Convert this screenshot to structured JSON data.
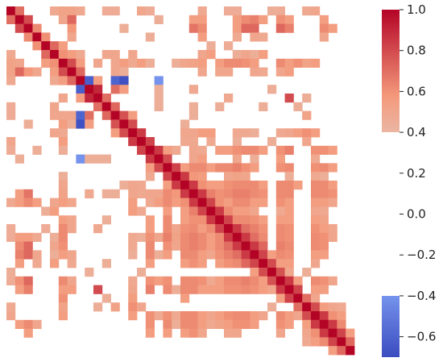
{
  "chart_data": {
    "type": "heatmap",
    "title": "",
    "xlabel": "",
    "ylabel": "",
    "x_tick_labels": [],
    "y_tick_labels": [],
    "color_scale": "coolwarm",
    "vmin": -0.7,
    "vmax": 1.0,
    "colorbar": {
      "placement": "right",
      "ticks": [
        1.0,
        0.8,
        0.6,
        0.4,
        0.2,
        0.0,
        -0.2,
        -0.4,
        -0.6
      ],
      "tick_labels": [
        "1.0",
        "0.8",
        "0.6",
        "0.4",
        "0.2",
        "0.0",
        "−0.2",
        "−0.4",
        "−0.6"
      ]
    },
    "mask_threshold": 0.4,
    "mask_note_values_between": [
      -0.4,
      0.4
    ],
    "matrix_size": 40,
    "diagonal_value": 1.0,
    "cells": [
      [
        0,
        1,
        0.7
      ],
      [
        0,
        5,
        0.48
      ],
      [
        0,
        6,
        0.52
      ],
      [
        0,
        7,
        0.52
      ],
      [
        0,
        8,
        0.48
      ],
      [
        0,
        11,
        0.46
      ],
      [
        0,
        12,
        0.46
      ],
      [
        0,
        15,
        0.5
      ],
      [
        0,
        16,
        0.46
      ],
      [
        0,
        22,
        0.48
      ],
      [
        0,
        25,
        0.46
      ],
      [
        0,
        26,
        0.46
      ],
      [
        0,
        30,
        0.45
      ],
      [
        0,
        31,
        0.46
      ],
      [
        0,
        34,
        0.48
      ],
      [
        0,
        35,
        0.5
      ],
      [
        1,
        2,
        0.8
      ],
      [
        1,
        6,
        0.5
      ],
      [
        1,
        7,
        0.72
      ],
      [
        1,
        17,
        0.45
      ],
      [
        1,
        21,
        0.55
      ],
      [
        1,
        22,
        0.55
      ],
      [
        1,
        26,
        0.55
      ],
      [
        1,
        27,
        0.62
      ],
      [
        1,
        28,
        0.65
      ],
      [
        1,
        29,
        0.55
      ],
      [
        1,
        31,
        0.6
      ],
      [
        1,
        32,
        0.55
      ],
      [
        1,
        36,
        0.55
      ],
      [
        2,
        3,
        0.62
      ],
      [
        2,
        7,
        0.58
      ],
      [
        2,
        13,
        0.45
      ],
      [
        2,
        21,
        0.68
      ],
      [
        2,
        22,
        0.62
      ],
      [
        2,
        26,
        0.55
      ],
      [
        2,
        27,
        0.72
      ],
      [
        2,
        28,
        0.72
      ],
      [
        2,
        31,
        0.72
      ],
      [
        2,
        32,
        0.65
      ],
      [
        2,
        36,
        0.62
      ],
      [
        2,
        37,
        0.55
      ],
      [
        3,
        4,
        0.6
      ],
      [
        3,
        7,
        0.5
      ],
      [
        3,
        16,
        0.45
      ],
      [
        3,
        22,
        0.55
      ],
      [
        3,
        26,
        0.48
      ],
      [
        3,
        28,
        0.5
      ],
      [
        3,
        29,
        0.48
      ],
      [
        3,
        36,
        0.5
      ],
      [
        4,
        5,
        0.72
      ],
      [
        4,
        6,
        0.55
      ],
      [
        4,
        23,
        0.45
      ],
      [
        4,
        25,
        0.46
      ],
      [
        5,
        6,
        0.6
      ],
      [
        5,
        7,
        0.55
      ],
      [
        5,
        8,
        0.48
      ],
      [
        5,
        11,
        0.5
      ],
      [
        5,
        12,
        0.5
      ],
      [
        5,
        14,
        0.5
      ],
      [
        5,
        22,
        0.5
      ],
      [
        5,
        23,
        0.55
      ],
      [
        5,
        26,
        0.45
      ],
      [
        5,
        27,
        0.5
      ],
      [
        5,
        28,
        0.45
      ],
      [
        5,
        29,
        0.55
      ],
      [
        6,
        7,
        0.8
      ],
      [
        6,
        8,
        0.55
      ],
      [
        6,
        10,
        0.5
      ],
      [
        6,
        12,
        0.5
      ],
      [
        6,
        13,
        0.55
      ],
      [
        6,
        14,
        0.48
      ],
      [
        6,
        15,
        0.55
      ],
      [
        6,
        16,
        0.45
      ],
      [
        6,
        19,
        0.45
      ],
      [
        6,
        20,
        0.5
      ],
      [
        6,
        21,
        0.52
      ],
      [
        6,
        22,
        0.55
      ],
      [
        6,
        24,
        0.55
      ],
      [
        6,
        25,
        0.62
      ],
      [
        6,
        26,
        0.62
      ],
      [
        6,
        27,
        0.6
      ],
      [
        6,
        28,
        0.55
      ],
      [
        6,
        31,
        0.62
      ],
      [
        6,
        32,
        0.55
      ],
      [
        6,
        33,
        0.6
      ],
      [
        6,
        34,
        0.52
      ],
      [
        6,
        35,
        0.55
      ],
      [
        7,
        8,
        0.72
      ],
      [
        7,
        12,
        0.5
      ],
      [
        7,
        13,
        0.45
      ],
      [
        7,
        22,
        0.5
      ],
      [
        7,
        24,
        0.5
      ],
      [
        7,
        25,
        0.5
      ],
      [
        7,
        28,
        0.5
      ],
      [
        7,
        29,
        0.48
      ],
      [
        7,
        31,
        0.5
      ],
      [
        7,
        32,
        0.55
      ],
      [
        8,
        9,
        -0.62
      ],
      [
        8,
        10,
        0.55
      ],
      [
        8,
        12,
        -0.6
      ],
      [
        8,
        13,
        -0.68
      ],
      [
        8,
        17,
        -0.4
      ],
      [
        9,
        10,
        0.9
      ],
      [
        9,
        12,
        0.7
      ],
      [
        9,
        13,
        0.55
      ],
      [
        9,
        17,
        0.45
      ],
      [
        9,
        21,
        0.48
      ],
      [
        9,
        30,
        0.45
      ],
      [
        10,
        11,
        0.7
      ],
      [
        10,
        17,
        0.45
      ],
      [
        10,
        25,
        0.48
      ],
      [
        10,
        32,
        0.8
      ],
      [
        10,
        34,
        0.45
      ],
      [
        11,
        12,
        0.72
      ],
      [
        11,
        17,
        0.45
      ],
      [
        11,
        21,
        0.45
      ],
      [
        11,
        24,
        0.45
      ],
      [
        11,
        29,
        0.45
      ],
      [
        11,
        33,
        0.45
      ],
      [
        12,
        13,
        0.78
      ],
      [
        12,
        14,
        0.55
      ],
      [
        12,
        21,
        0.45
      ],
      [
        12,
        34,
        0.52
      ],
      [
        13,
        14,
        0.8
      ],
      [
        13,
        20,
        0.45
      ],
      [
        14,
        15,
        0.85
      ],
      [
        14,
        20,
        0.5
      ],
      [
        14,
        21,
        0.5
      ],
      [
        14,
        22,
        0.55
      ],
      [
        14,
        23,
        0.55
      ],
      [
        14,
        26,
        0.48
      ],
      [
        14,
        27,
        0.48
      ],
      [
        14,
        28,
        0.45
      ],
      [
        14,
        31,
        0.48
      ],
      [
        14,
        32,
        0.5
      ],
      [
        14,
        33,
        0.55
      ],
      [
        14,
        34,
        0.6
      ],
      [
        14,
        35,
        0.55
      ],
      [
        15,
        16,
        0.82
      ],
      [
        15,
        20,
        0.48
      ],
      [
        15,
        21,
        0.48
      ],
      [
        15,
        23,
        0.48
      ],
      [
        15,
        26,
        0.45
      ],
      [
        15,
        30,
        0.45
      ],
      [
        15,
        34,
        0.5
      ],
      [
        16,
        17,
        0.85
      ],
      [
        16,
        18,
        0.55
      ],
      [
        16,
        19,
        0.48
      ],
      [
        16,
        21,
        0.5
      ],
      [
        16,
        22,
        0.48
      ],
      [
        16,
        24,
        0.55
      ],
      [
        16,
        25,
        0.55
      ],
      [
        16,
        26,
        0.6
      ],
      [
        16,
        27,
        0.62
      ],
      [
        16,
        28,
        0.62
      ],
      [
        16,
        29,
        0.55
      ],
      [
        16,
        31,
        0.6
      ],
      [
        16,
        32,
        0.65
      ],
      [
        16,
        35,
        0.6
      ],
      [
        16,
        36,
        0.6
      ],
      [
        16,
        37,
        0.55
      ],
      [
        17,
        18,
        0.8
      ],
      [
        17,
        21,
        0.5
      ],
      [
        17,
        22,
        0.55
      ],
      [
        17,
        26,
        0.5
      ],
      [
        17,
        28,
        0.45
      ],
      [
        17,
        31,
        0.55
      ],
      [
        17,
        35,
        0.48
      ],
      [
        18,
        19,
        0.82
      ],
      [
        18,
        20,
        0.55
      ],
      [
        18,
        21,
        0.62
      ],
      [
        18,
        22,
        0.62
      ],
      [
        18,
        23,
        0.55
      ],
      [
        18,
        24,
        0.62
      ],
      [
        18,
        25,
        0.62
      ],
      [
        18,
        26,
        0.65
      ],
      [
        18,
        27,
        0.6
      ],
      [
        18,
        28,
        0.55
      ],
      [
        18,
        31,
        0.6
      ],
      [
        18,
        32,
        0.62
      ],
      [
        18,
        35,
        0.6
      ],
      [
        18,
        36,
        0.62
      ],
      [
        18,
        37,
        0.55
      ],
      [
        19,
        20,
        0.85
      ],
      [
        19,
        21,
        0.58
      ],
      [
        19,
        22,
        0.55
      ],
      [
        19,
        25,
        0.5
      ],
      [
        19,
        26,
        0.52
      ],
      [
        19,
        27,
        0.5
      ],
      [
        19,
        32,
        0.45
      ],
      [
        19,
        35,
        0.48
      ],
      [
        19,
        36,
        0.45
      ],
      [
        20,
        21,
        0.85
      ],
      [
        20,
        22,
        0.6
      ],
      [
        20,
        23,
        0.55
      ],
      [
        20,
        24,
        0.55
      ],
      [
        20,
        25,
        0.6
      ],
      [
        20,
        26,
        0.62
      ],
      [
        20,
        27,
        0.62
      ],
      [
        20,
        28,
        0.62
      ],
      [
        20,
        29,
        0.55
      ],
      [
        20,
        31,
        0.62
      ],
      [
        20,
        32,
        0.62
      ],
      [
        20,
        33,
        0.55
      ],
      [
        20,
        35,
        0.62
      ],
      [
        20,
        36,
        0.62
      ],
      [
        20,
        37,
        0.55
      ],
      [
        21,
        22,
        0.85
      ],
      [
        21,
        23,
        0.65
      ],
      [
        21,
        24,
        0.6
      ],
      [
        21,
        25,
        0.62
      ],
      [
        21,
        26,
        0.65
      ],
      [
        21,
        27,
        0.65
      ],
      [
        21,
        28,
        0.62
      ],
      [
        21,
        29,
        0.6
      ],
      [
        21,
        31,
        0.62
      ],
      [
        21,
        32,
        0.62
      ],
      [
        21,
        35,
        0.62
      ],
      [
        21,
        36,
        0.62
      ],
      [
        21,
        37,
        0.6
      ],
      [
        22,
        23,
        0.82
      ],
      [
        22,
        24,
        0.6
      ],
      [
        22,
        25,
        0.55
      ],
      [
        22,
        26,
        0.62
      ],
      [
        22,
        27,
        0.62
      ],
      [
        22,
        28,
        0.55
      ],
      [
        22,
        29,
        0.55
      ],
      [
        22,
        31,
        0.6
      ],
      [
        22,
        32,
        0.55
      ],
      [
        22,
        35,
        0.55
      ],
      [
        22,
        36,
        0.55
      ],
      [
        22,
        37,
        0.5
      ],
      [
        23,
        24,
        0.85
      ],
      [
        23,
        25,
        0.62
      ],
      [
        23,
        26,
        0.55
      ],
      [
        23,
        27,
        0.55
      ],
      [
        23,
        28,
        0.5
      ],
      [
        23,
        31,
        0.48
      ],
      [
        23,
        32,
        0.55
      ],
      [
        23,
        35,
        0.5
      ],
      [
        23,
        36,
        0.48
      ],
      [
        24,
        25,
        0.82
      ],
      [
        24,
        26,
        0.62
      ],
      [
        24,
        27,
        0.62
      ],
      [
        24,
        28,
        0.6
      ],
      [
        24,
        29,
        0.55
      ],
      [
        24,
        31,
        0.55
      ],
      [
        24,
        32,
        0.55
      ],
      [
        24,
        35,
        0.55
      ],
      [
        24,
        36,
        0.52
      ],
      [
        25,
        26,
        0.85
      ],
      [
        25,
        27,
        0.7
      ],
      [
        25,
        28,
        0.65
      ],
      [
        25,
        29,
        0.6
      ],
      [
        25,
        31,
        0.62
      ],
      [
        25,
        32,
        0.6
      ],
      [
        25,
        35,
        0.6
      ],
      [
        25,
        36,
        0.55
      ],
      [
        25,
        37,
        0.5
      ],
      [
        26,
        27,
        0.85
      ],
      [
        26,
        28,
        0.7
      ],
      [
        26,
        29,
        0.62
      ],
      [
        26,
        31,
        0.62
      ],
      [
        26,
        32,
        0.6
      ],
      [
        26,
        35,
        0.62
      ],
      [
        26,
        36,
        0.6
      ],
      [
        26,
        37,
        0.5
      ],
      [
        27,
        28,
        0.85
      ],
      [
        27,
        29,
        0.72
      ],
      [
        27,
        31,
        0.65
      ],
      [
        27,
        32,
        0.62
      ],
      [
        27,
        35,
        0.62
      ],
      [
        27,
        36,
        0.6
      ],
      [
        28,
        29,
        0.82
      ],
      [
        28,
        30,
        0.55
      ],
      [
        28,
        31,
        0.62
      ],
      [
        28,
        32,
        0.6
      ],
      [
        28,
        35,
        0.55
      ],
      [
        28,
        36,
        0.55
      ],
      [
        29,
        30,
        0.8
      ],
      [
        29,
        31,
        0.55
      ],
      [
        29,
        32,
        0.55
      ],
      [
        29,
        35,
        0.5
      ],
      [
        30,
        31,
        0.78
      ],
      [
        30,
        32,
        0.5
      ],
      [
        30,
        34,
        0.45
      ],
      [
        31,
        32,
        0.85
      ],
      [
        31,
        33,
        0.55
      ],
      [
        31,
        35,
        0.62
      ],
      [
        31,
        36,
        0.6
      ],
      [
        31,
        37,
        0.5
      ],
      [
        32,
        33,
        0.82
      ],
      [
        32,
        35,
        0.55
      ],
      [
        32,
        36,
        0.55
      ],
      [
        33,
        34,
        0.7
      ],
      [
        33,
        35,
        0.5
      ],
      [
        34,
        35,
        0.8
      ],
      [
        34,
        36,
        0.55
      ],
      [
        34,
        37,
        0.5
      ],
      [
        34,
        38,
        0.48
      ],
      [
        35,
        36,
        0.85
      ],
      [
        35,
        37,
        0.6
      ],
      [
        35,
        38,
        0.55
      ],
      [
        36,
        37,
        0.85
      ],
      [
        36,
        38,
        0.62
      ],
      [
        37,
        38,
        0.82
      ],
      [
        37,
        39,
        0.55
      ],
      [
        38,
        39,
        0.72
      ]
    ]
  }
}
